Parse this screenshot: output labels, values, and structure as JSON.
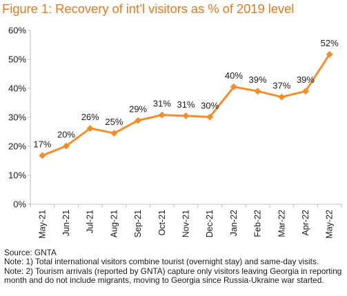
{
  "title": "Figure 1: Recovery of int’l visitors as % of 2019 level",
  "chart_data": {
    "type": "line",
    "categories": [
      "May-21",
      "Jun-21",
      "Jul-21",
      "Aug-21",
      "Sep-21",
      "Oct-21",
      "Nov-21",
      "Dec-21",
      "Jan-22",
      "Feb-22",
      "Mar-22",
      "Apr-22",
      "May-22"
    ],
    "values": [
      17,
      20,
      26,
      25,
      29,
      31,
      31,
      30,
      40,
      39,
      37,
      39,
      52
    ],
    "plotted_values": [
      16.8,
      20.1,
      26.2,
      24.5,
      28.9,
      30.8,
      30.5,
      30.1,
      40.5,
      39.0,
      37.0,
      39.0,
      51.7
    ],
    "data_labels": [
      "17%",
      "20%",
      "26%",
      "25%",
      "29%",
      "31%",
      "31%",
      "30%",
      "40%",
      "39%",
      "37%",
      "39%",
      "52%"
    ],
    "yticks": [
      0,
      10,
      20,
      30,
      40,
      50,
      60
    ],
    "ytick_labels": [
      "0%",
      "10%",
      "20%",
      "30%",
      "40%",
      "50%",
      "60%"
    ],
    "ylim": [
      0,
      60
    ],
    "grid": false,
    "marker": "diamond",
    "line_color": "#f28e2b",
    "axis_color": "#bfbfbf",
    "xlabel": "",
    "ylabel": ""
  },
  "notes": {
    "source": "Source: GNTA",
    "note1": "Note: 1) Total international visitors combine tourist (overnight stay) and same-day visits.",
    "note2": "Note: 2) Tourism arrivals (reported by GNTA) capture only visitors leaving Georgia in reporting month and do not include migrants, moving to Georgia since Russia-Ukraine war started."
  },
  "colors": {
    "title": "#e07b24",
    "series": "#f28e2b"
  }
}
